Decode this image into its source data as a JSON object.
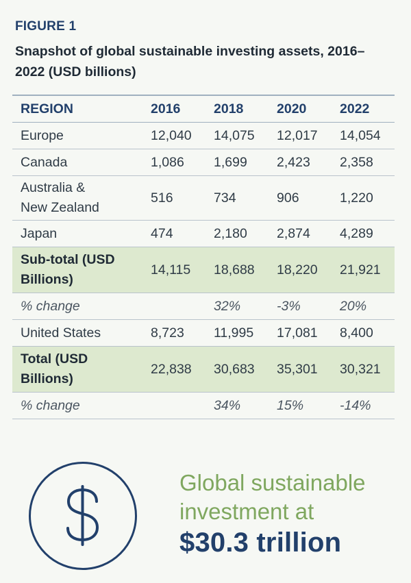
{
  "figure_label": "FIGURE 1",
  "figure_title": "Snapshot of global sustainable investing assets, 2016– 2022 (USD billions)",
  "table": {
    "header": [
      "REGION",
      "2016",
      "2018",
      "2020",
      "2022"
    ],
    "rows": {
      "europe": [
        "Europe",
        "12,040",
        "14,075",
        "12,017",
        "14,054"
      ],
      "canada": [
        "Canada",
        "1,086",
        "1,699",
        "2,423",
        "2,358"
      ],
      "anz": [
        "Australia & New Zealand",
        "516",
        "734",
        "906",
        "1,220"
      ],
      "japan": [
        "Japan",
        "474",
        "2,180",
        "2,874",
        "4,289"
      ],
      "subtotal": [
        "Sub-total (USD Billions)",
        "14,115",
        "18,688",
        "18,220",
        "21,921"
      ],
      "subtotal_change": [
        "% change",
        "",
        "32%",
        "-3%",
        "20%"
      ],
      "us": [
        "United States",
        "8,723",
        "11,995",
        "17,081",
        "8,400"
      ],
      "total": [
        "Total (USD Billions)",
        "22,838",
        "30,683",
        "35,301",
        "30,321"
      ],
      "total_change": [
        "% change",
        "",
        "34%",
        "15%",
        "-14%"
      ]
    }
  },
  "callout": {
    "icon": "dollar-sign-icon",
    "text": "Global sustainable investment at",
    "amount": "$30.3 trillion"
  },
  "colors": {
    "accent_blue": "#22406b",
    "accent_green": "#7fa75f",
    "highlight_row": "#dde9cf"
  }
}
